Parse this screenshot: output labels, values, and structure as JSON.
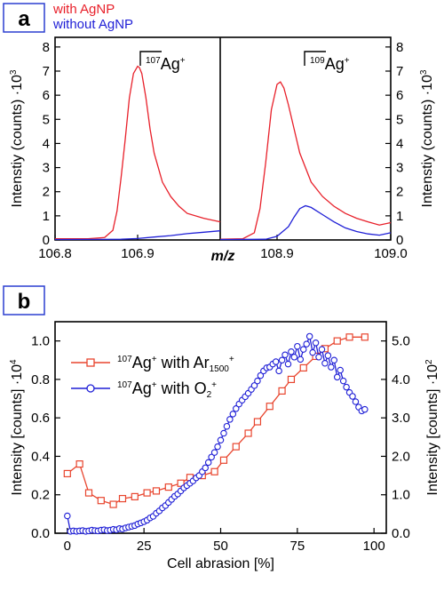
{
  "chart_data": [
    {
      "type": "line",
      "panel_label": "a",
      "legend": [
        {
          "label": "with AgNP",
          "color": "#e8202a"
        },
        {
          "label": "without AgNP",
          "color": "#1f1fd6"
        }
      ],
      "xlabel": "m/z",
      "ylabel_left": "Intenstiy (counts) ·10",
      "ylabel_right": "Intenstiy (counts) ·10",
      "ylabel_exponent": "3",
      "ylim": [
        0,
        8.4
      ],
      "yticks": [
        "0",
        "1",
        "2",
        "3",
        "4",
        "5",
        "6",
        "7",
        "8"
      ],
      "panels": [
        {
          "xlim": [
            106.8,
            107.0
          ],
          "xticks": [
            "106.8",
            "106.9"
          ],
          "xtick_values": [
            106.8,
            106.9
          ],
          "annotation": {
            "mass": "107",
            "element": "Ag",
            "charge": "+"
          },
          "series": [
            {
              "name": "with AgNP",
              "color": "#e8202a",
              "x": [
                106.8,
                106.84,
                106.86,
                106.87,
                106.875,
                106.88,
                106.885,
                106.89,
                106.895,
                106.9,
                106.902,
                106.905,
                106.91,
                106.915,
                106.92,
                106.93,
                106.94,
                106.95,
                106.96,
                106.98,
                107.0
              ],
              "y": [
                0.05,
                0.05,
                0.1,
                0.4,
                1.2,
                2.6,
                4.2,
                5.9,
                6.9,
                7.2,
                7.15,
                6.9,
                5.9,
                4.6,
                3.6,
                2.4,
                1.8,
                1.4,
                1.1,
                0.9,
                0.75
              ]
            },
            {
              "name": "without AgNP",
              "color": "#1f1fd6",
              "x": [
                106.8,
                106.88,
                106.9,
                106.92,
                106.94,
                106.96,
                106.98,
                107.0
              ],
              "y": [
                0.02,
                0.03,
                0.06,
                0.12,
                0.18,
                0.26,
                0.32,
                0.38
              ]
            }
          ]
        },
        {
          "xlim": [
            108.85,
            109.0
          ],
          "xticks": [
            "108.9",
            "109.0"
          ],
          "xtick_values": [
            108.9,
            109.0
          ],
          "annotation": {
            "mass": "109",
            "element": "Ag",
            "charge": "+"
          },
          "series": [
            {
              "name": "with AgNP",
              "color": "#e8202a",
              "x": [
                108.85,
                108.87,
                108.88,
                108.885,
                108.89,
                108.895,
                108.9,
                108.903,
                108.906,
                108.91,
                108.915,
                108.92,
                108.93,
                108.94,
                108.95,
                108.96,
                108.97,
                108.98,
                108.99,
                109.0
              ],
              "y": [
                0.03,
                0.05,
                0.3,
                1.3,
                3.2,
                5.4,
                6.45,
                6.55,
                6.3,
                5.6,
                4.6,
                3.6,
                2.4,
                1.8,
                1.4,
                1.1,
                0.9,
                0.75,
                0.62,
                0.72
              ]
            },
            {
              "name": "without AgNP",
              "color": "#1f1fd6",
              "x": [
                108.85,
                108.89,
                108.9,
                108.91,
                108.915,
                108.92,
                108.925,
                108.93,
                108.94,
                108.95,
                108.96,
                108.97,
                108.98,
                108.99,
                109.0
              ],
              "y": [
                0.02,
                0.03,
                0.15,
                0.55,
                0.95,
                1.3,
                1.42,
                1.35,
                1.05,
                0.75,
                0.5,
                0.35,
                0.25,
                0.2,
                0.3
              ]
            }
          ]
        }
      ]
    },
    {
      "type": "line",
      "panel_label": "b",
      "xlabel": "Cell abrasion [%]",
      "xlim": [
        -4,
        104
      ],
      "xticks": [
        0,
        25,
        50,
        75,
        100
      ],
      "ylabel_left": "Intensity [counts] ·10",
      "ylabel_left_exponent": "4",
      "ylim_left": [
        0,
        1.1
      ],
      "yticks_left": [
        "0.0",
        "0.2",
        "0.4",
        "0.6",
        "0.8",
        "1.0"
      ],
      "ylabel_right": "Intensity [counts] ·10",
      "ylabel_right_exponent": "2",
      "ylim_right": [
        0,
        5.5
      ],
      "yticks_right": [
        "0.0",
        "1.0",
        "2.0",
        "3.0",
        "4.0",
        "5.0"
      ],
      "series": [
        {
          "name": "with Ar",
          "name_mass": "107",
          "name_element": "Ag",
          "name_charge": "+",
          "name_sub": "1500",
          "name_sup": "+",
          "color": "#e8452e",
          "marker": "square",
          "axis": "left",
          "x": [
            0,
            4,
            7,
            11,
            15,
            18,
            22,
            26,
            29,
            33,
            37,
            40,
            44,
            48,
            51,
            55,
            59,
            62,
            66,
            70,
            73,
            77,
            81,
            84,
            88,
            92,
            97
          ],
          "y": [
            0.31,
            0.36,
            0.21,
            0.17,
            0.15,
            0.18,
            0.19,
            0.21,
            0.22,
            0.24,
            0.26,
            0.29,
            0.3,
            0.32,
            0.38,
            0.45,
            0.52,
            0.58,
            0.66,
            0.74,
            0.8,
            0.86,
            0.92,
            0.96,
            1.0,
            1.02,
            1.02
          ]
        },
        {
          "name": "with O",
          "name_mass": "107",
          "name_element": "Ag",
          "name_charge": "+",
          "name_sub": "2",
          "name_sup": "+",
          "color": "#1f1fd6",
          "marker": "circle",
          "axis": "right",
          "x": [
            0,
            1,
            2,
            3,
            4,
            5,
            6,
            7,
            8,
            9,
            10,
            11,
            12,
            13,
            14,
            15,
            16,
            17,
            18,
            19,
            20,
            21,
            22,
            23,
            24,
            25,
            26,
            27,
            28,
            29,
            30,
            31,
            32,
            33,
            34,
            35,
            36,
            37,
            38,
            39,
            40,
            41,
            42,
            43,
            44,
            45,
            46,
            47,
            48,
            49,
            50,
            51,
            52,
            53,
            54,
            55,
            56,
            57,
            58,
            59,
            60,
            61,
            62,
            63,
            64,
            65,
            66,
            67,
            68,
            69,
            70,
            71,
            72,
            73,
            74,
            75,
            76,
            77,
            78,
            79,
            80,
            81,
            82,
            83,
            84,
            85,
            86,
            87,
            88,
            89,
            90,
            91,
            92,
            93,
            94,
            95,
            96,
            97
          ],
          "y": [
            0.45,
            0.05,
            0.06,
            0.05,
            0.06,
            0.07,
            0.05,
            0.06,
            0.08,
            0.07,
            0.06,
            0.08,
            0.09,
            0.07,
            0.08,
            0.1,
            0.09,
            0.12,
            0.11,
            0.14,
            0.16,
            0.18,
            0.2,
            0.24,
            0.27,
            0.3,
            0.34,
            0.4,
            0.44,
            0.52,
            0.58,
            0.66,
            0.72,
            0.8,
            0.88,
            0.96,
            1.02,
            1.1,
            1.18,
            1.24,
            1.3,
            1.36,
            1.44,
            1.5,
            1.6,
            1.7,
            1.84,
            1.98,
            2.1,
            2.25,
            2.42,
            2.6,
            2.78,
            2.96,
            3.1,
            3.24,
            3.36,
            3.46,
            3.55,
            3.64,
            3.74,
            3.84,
            3.96,
            4.1,
            4.22,
            4.3,
            4.32,
            4.4,
            4.46,
            4.22,
            4.5,
            4.64,
            4.4,
            4.72,
            4.58,
            4.86,
            4.52,
            4.78,
            4.92,
            5.12,
            4.7,
            4.95,
            4.58,
            4.78,
            4.42,
            4.62,
            4.32,
            4.5,
            4.06,
            4.24,
            3.96,
            3.8,
            3.66,
            3.56,
            3.42,
            3.28,
            3.18,
            3.22
          ]
        }
      ],
      "legend_position": "upper-left"
    }
  ]
}
